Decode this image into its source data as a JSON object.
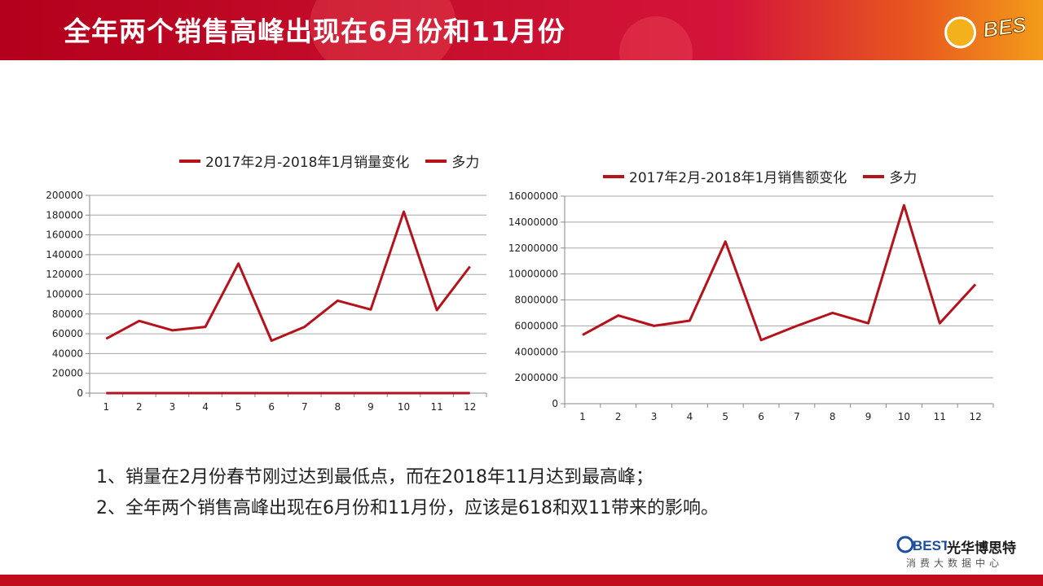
{
  "header": {
    "title": "全年两个销售高峰出现在6月份和11月份",
    "logo_text": "BEST"
  },
  "colors": {
    "series": "#b5121b",
    "header_red": "#c8102e",
    "footer_red": "#c00d1e"
  },
  "chart_data": [
    {
      "type": "line",
      "legend": [
        "2017年2月-2018年1月销量变化",
        "多力"
      ],
      "categories": [
        "1",
        "2",
        "3",
        "4",
        "5",
        "6",
        "7",
        "8",
        "9",
        "10",
        "11",
        "12"
      ],
      "series": [
        {
          "name": "2017年2月-2018年1月销量变化",
          "values": [
            55000,
            73000,
            63500,
            67000,
            131000,
            53000,
            67000,
            93500,
            84500,
            183500,
            84000,
            128000
          ]
        },
        {
          "name": "多力",
          "values": [
            0,
            0,
            0,
            0,
            0,
            0,
            0,
            0,
            0,
            0,
            0,
            0
          ]
        }
      ],
      "yticks": [
        "0",
        "20000",
        "40000",
        "60000",
        "80000",
        "100000",
        "120000",
        "140000",
        "160000",
        "180000",
        "200000"
      ],
      "ylim": [
        0,
        200000
      ],
      "grid": true,
      "legend_position": "top"
    },
    {
      "type": "line",
      "legend": [
        "2017年2月-2018年1月销售额变化",
        "多力"
      ],
      "categories": [
        "1",
        "2",
        "3",
        "4",
        "5",
        "6",
        "7",
        "8",
        "9",
        "10",
        "11",
        "12"
      ],
      "series": [
        {
          "name": "2017年2月-2018年1月销售额变化",
          "values": [
            5300000,
            6800000,
            6000000,
            6400000,
            12500000,
            4900000,
            6000000,
            7000000,
            6200000,
            15300000,
            6200000,
            9200000
          ]
        },
        {
          "name": "多力",
          "values": [
            null,
            null,
            null,
            null,
            null,
            null,
            null,
            null,
            null,
            null,
            null,
            null
          ]
        }
      ],
      "yticks": [
        "0",
        "2000000",
        "4000000",
        "6000000",
        "8000000",
        "10000000",
        "12000000",
        "14000000",
        "16000000"
      ],
      "ylim": [
        0,
        16000000
      ],
      "grid": true,
      "legend_position": "top"
    }
  ],
  "notes": [
    "1、销量在2月份春节刚过达到最低点，而在2018年11月达到最高峰；",
    "2、全年两个销售高峰出现在6月份和11月份，应该是618和双11带来的影响。"
  ],
  "brand": {
    "name": "光华博思特",
    "subtitle": "消费大数据中心",
    "logo_text": "BEST"
  }
}
